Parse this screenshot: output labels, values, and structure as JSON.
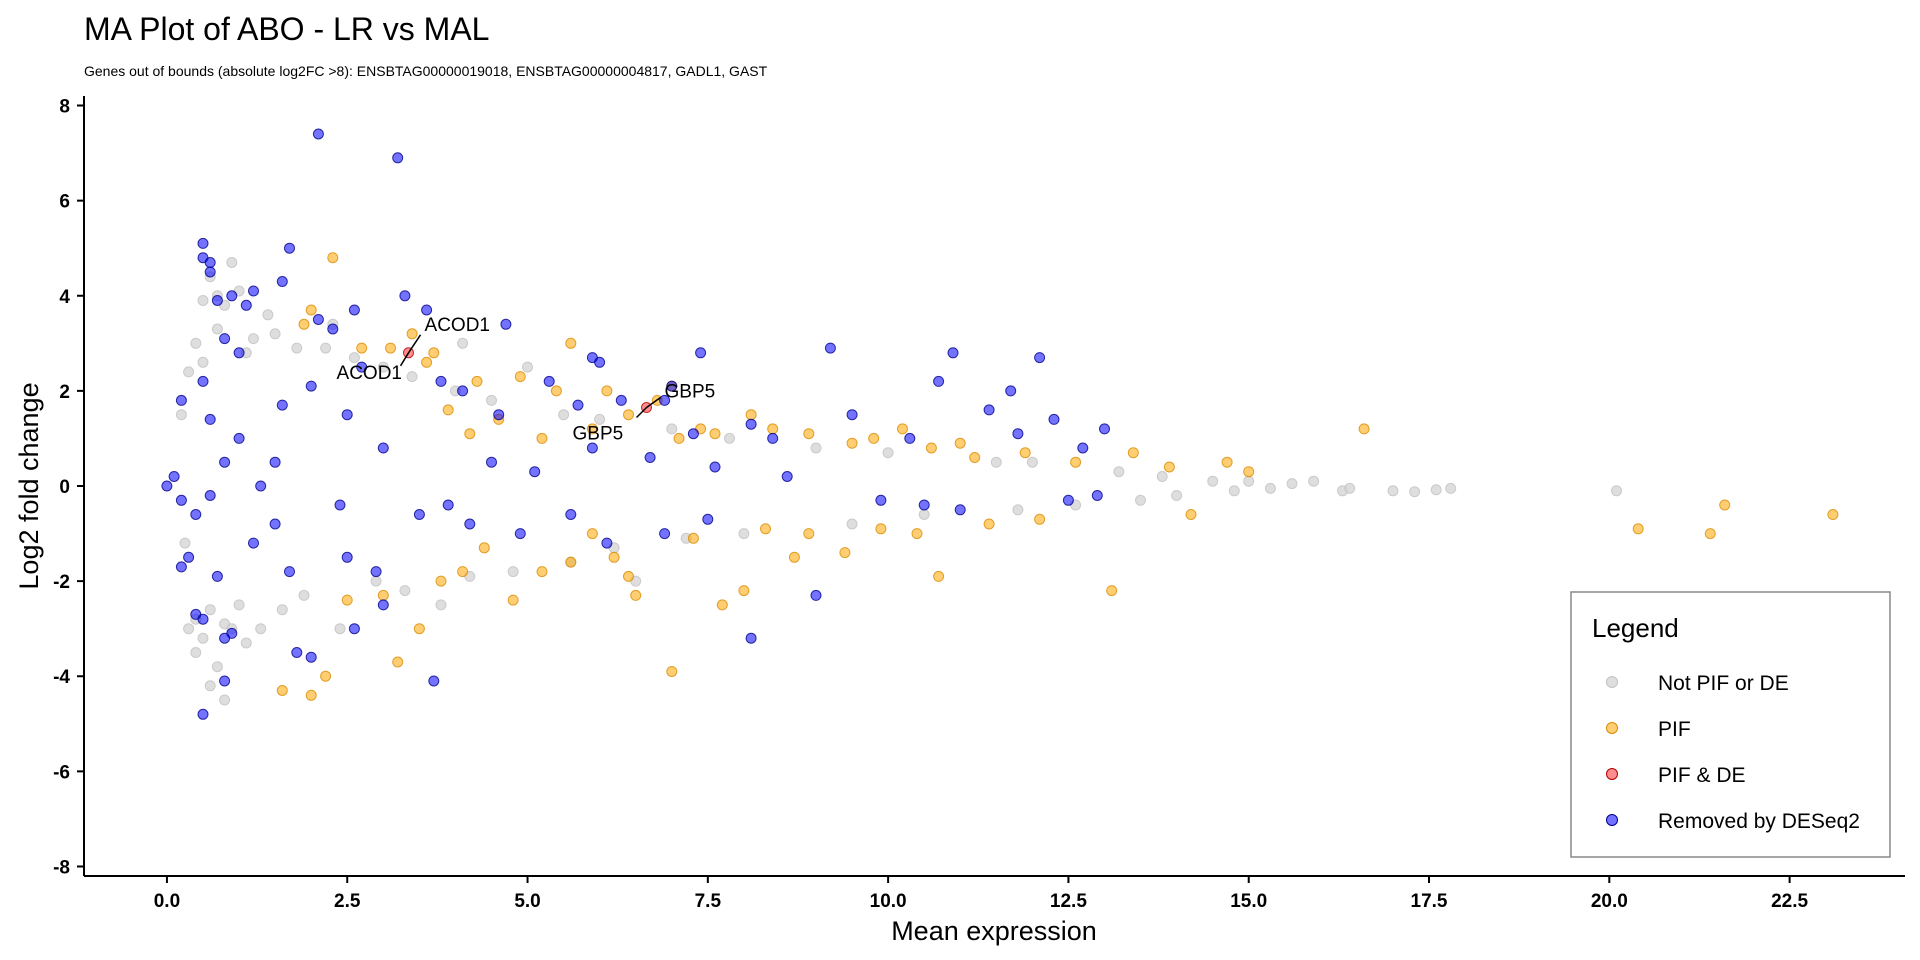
{
  "chart_data": {
    "type": "scatter",
    "title": "MA Plot of ABO - LR vs MAL",
    "subtitle": "Genes out of bounds (absolute log2FC >8):  ENSBTAG00000019018, ENSBTAG00000004817, GADL1, GAST",
    "xlabel": "Mean expression",
    "ylabel": "Log2 fold change",
    "xlim": [
      -1.15,
      24.1
    ],
    "ylim": [
      -8.2,
      8.2
    ],
    "x_ticks": [
      0,
      2.5,
      5,
      7.5,
      10,
      12.5,
      15,
      17.5,
      20,
      22.5
    ],
    "x_tick_labels": [
      "0.0",
      "2.5",
      "5.0",
      "7.5",
      "10.0",
      "12.5",
      "15.0",
      "17.5",
      "20.0",
      "22.5"
    ],
    "y_ticks": [
      -8,
      -6,
      -4,
      -2,
      0,
      2,
      4,
      6,
      8
    ],
    "y_tick_labels": [
      "-8",
      "-6",
      "-4",
      "-2",
      "0",
      "2",
      "4",
      "6",
      "8"
    ],
    "grid": false,
    "legend_position": "bottom-right",
    "legend": {
      "title": "Legend",
      "entries": [
        "Not PIF or DE",
        "PIF",
        "PIF & DE",
        "Removed by DESeq2"
      ]
    },
    "series": [
      {
        "name": "Not PIF or DE",
        "color": "#d3d3d3",
        "points": [
          [
            0.5,
            3.9
          ],
          [
            0.6,
            4.4
          ],
          [
            0.7,
            4.0
          ],
          [
            0.8,
            3.8
          ],
          [
            0.9,
            4.7
          ],
          [
            1.0,
            4.1
          ],
          [
            0.4,
            3.0
          ],
          [
            0.7,
            3.3
          ],
          [
            1.2,
            3.1
          ],
          [
            1.5,
            3.2
          ],
          [
            0.3,
            2.4
          ],
          [
            0.5,
            2.6
          ],
          [
            1.1,
            2.8
          ],
          [
            1.8,
            2.9
          ],
          [
            2.2,
            2.9
          ],
          [
            2.6,
            2.7
          ],
          [
            0.6,
            -2.6
          ],
          [
            0.8,
            -2.9
          ],
          [
            0.5,
            -3.2
          ],
          [
            0.9,
            -3.0
          ],
          [
            0.4,
            -3.5
          ],
          [
            0.7,
            -3.8
          ],
          [
            1.3,
            -3.0
          ],
          [
            1.6,
            -2.6
          ],
          [
            1.9,
            -2.3
          ],
          [
            0.6,
            -4.2
          ],
          [
            0.8,
            -4.5
          ],
          [
            0.3,
            -3.0
          ],
          [
            1.1,
            -3.3
          ],
          [
            0.4,
            -2.8
          ],
          [
            3.0,
            2.5
          ],
          [
            3.4,
            2.3
          ],
          [
            2.9,
            -2.0
          ],
          [
            3.3,
            -2.2
          ],
          [
            4.0,
            2.0
          ],
          [
            4.5,
            1.8
          ],
          [
            4.2,
            -1.9
          ],
          [
            4.8,
            -1.8
          ],
          [
            5.5,
            1.5
          ],
          [
            6.0,
            1.4
          ],
          [
            5.6,
            -1.6
          ],
          [
            6.2,
            -1.3
          ],
          [
            7.0,
            1.2
          ],
          [
            7.8,
            1.0
          ],
          [
            7.2,
            -1.1
          ],
          [
            8.0,
            -1.0
          ],
          [
            9.0,
            0.8
          ],
          [
            10.0,
            0.7
          ],
          [
            9.5,
            -0.8
          ],
          [
            10.5,
            -0.6
          ],
          [
            11.5,
            0.5
          ],
          [
            12.0,
            0.5
          ],
          [
            11.8,
            -0.5
          ],
          [
            12.6,
            -0.4
          ],
          [
            13.2,
            0.3
          ],
          [
            13.8,
            0.2
          ],
          [
            13.5,
            -0.3
          ],
          [
            14.0,
            -0.2
          ],
          [
            14.5,
            0.1
          ],
          [
            14.8,
            -0.1
          ],
          [
            15.0,
            0.1
          ],
          [
            15.3,
            -0.05
          ],
          [
            15.6,
            0.05
          ],
          [
            15.9,
            0.1
          ],
          [
            16.3,
            -0.1
          ],
          [
            16.4,
            -0.05
          ],
          [
            17.0,
            -0.1
          ],
          [
            17.3,
            -0.12
          ],
          [
            17.6,
            -0.08
          ],
          [
            17.8,
            -0.05
          ],
          [
            20.1,
            -0.1
          ],
          [
            4.1,
            3.0
          ],
          [
            5.0,
            2.5
          ],
          [
            2.3,
            3.4
          ],
          [
            1.4,
            3.6
          ],
          [
            2.4,
            -3.0
          ],
          [
            1.0,
            -2.5
          ],
          [
            3.8,
            -2.5
          ],
          [
            6.5,
            -2.0
          ],
          [
            0.2,
            1.5
          ],
          [
            0.25,
            -1.2
          ]
        ]
      },
      {
        "name": "PIF",
        "color": "#ffa500",
        "points": [
          [
            2.3,
            4.8
          ],
          [
            2.0,
            3.7
          ],
          [
            1.9,
            3.4
          ],
          [
            3.4,
            3.2
          ],
          [
            3.7,
            2.8
          ],
          [
            5.6,
            3.0
          ],
          [
            3.1,
            2.9
          ],
          [
            2.7,
            2.9
          ],
          [
            3.6,
            2.6
          ],
          [
            4.3,
            2.2
          ],
          [
            4.9,
            2.3
          ],
          [
            5.4,
            2.0
          ],
          [
            6.1,
            2.0
          ],
          [
            6.8,
            1.8
          ],
          [
            7.0,
            2.1
          ],
          [
            7.4,
            1.2
          ],
          [
            7.1,
            1.0
          ],
          [
            7.6,
            1.1
          ],
          [
            8.4,
            1.2
          ],
          [
            8.9,
            1.1
          ],
          [
            9.5,
            0.9
          ],
          [
            10.2,
            1.2
          ],
          [
            10.6,
            0.8
          ],
          [
            11.2,
            0.6
          ],
          [
            11.9,
            0.7
          ],
          [
            12.6,
            0.5
          ],
          [
            13.4,
            0.7
          ],
          [
            14.7,
            0.5
          ],
          [
            16.6,
            1.2
          ],
          [
            6.4,
            1.5
          ],
          [
            5.2,
            1.0
          ],
          [
            4.6,
            1.4
          ],
          [
            3.9,
            1.6
          ],
          [
            4.2,
            1.1
          ],
          [
            5.9,
            1.2
          ],
          [
            8.1,
            1.5
          ],
          [
            9.8,
            1.0
          ],
          [
            11.0,
            0.9
          ],
          [
            1.6,
            -4.3
          ],
          [
            2.0,
            -4.4
          ],
          [
            2.2,
            -4.0
          ],
          [
            3.2,
            -3.7
          ],
          [
            3.5,
            -3.0
          ],
          [
            2.5,
            -2.4
          ],
          [
            3.0,
            -2.3
          ],
          [
            3.8,
            -2.0
          ],
          [
            4.1,
            -1.8
          ],
          [
            4.8,
            -2.4
          ],
          [
            5.2,
            -1.8
          ],
          [
            5.6,
            -1.6
          ],
          [
            6.2,
            -1.5
          ],
          [
            6.4,
            -1.9
          ],
          [
            6.5,
            -2.3
          ],
          [
            7.0,
            -3.9
          ],
          [
            7.7,
            -2.5
          ],
          [
            8.0,
            -2.2
          ],
          [
            8.7,
            -1.5
          ],
          [
            8.9,
            -1.0
          ],
          [
            9.4,
            -1.4
          ],
          [
            9.9,
            -0.9
          ],
          [
            10.4,
            -1.0
          ],
          [
            10.7,
            -1.9
          ],
          [
            11.4,
            -0.8
          ],
          [
            12.1,
            -0.7
          ],
          [
            13.1,
            -2.2
          ],
          [
            14.2,
            -0.6
          ],
          [
            4.4,
            -1.3
          ],
          [
            5.9,
            -1.0
          ],
          [
            7.3,
            -1.1
          ],
          [
            8.3,
            -0.9
          ],
          [
            20.4,
            -0.9
          ],
          [
            21.4,
            -1.0
          ],
          [
            21.6,
            -0.4
          ],
          [
            23.1,
            -0.6
          ],
          [
            13.9,
            0.4
          ],
          [
            15.0,
            0.3
          ]
        ]
      },
      {
        "name": "PIF & DE",
        "color": "#ff3030",
        "points": [
          [
            3.35,
            2.8
          ],
          [
            6.65,
            1.65
          ]
        ]
      },
      {
        "name": "Removed by DESeq2",
        "color": "#0000ff",
        "points": [
          [
            2.1,
            7.4
          ],
          [
            3.2,
            6.9
          ],
          [
            0.5,
            5.1
          ],
          [
            0.5,
            4.8
          ],
          [
            0.6,
            4.7
          ],
          [
            0.6,
            4.5
          ],
          [
            1.7,
            5.0
          ],
          [
            0.9,
            4.0
          ],
          [
            1.2,
            4.1
          ],
          [
            1.1,
            3.8
          ],
          [
            0.7,
            3.9
          ],
          [
            1.6,
            4.3
          ],
          [
            2.1,
            3.5
          ],
          [
            2.3,
            3.3
          ],
          [
            2.6,
            3.7
          ],
          [
            3.3,
            4.0
          ],
          [
            3.6,
            3.7
          ],
          [
            4.7,
            3.4
          ],
          [
            0.8,
            3.1
          ],
          [
            1.0,
            2.8
          ],
          [
            2.7,
            2.5
          ],
          [
            3.8,
            2.2
          ],
          [
            4.1,
            2.0
          ],
          [
            4.6,
            1.5
          ],
          [
            5.3,
            2.2
          ],
          [
            5.9,
            2.7
          ],
          [
            6.0,
            2.6
          ],
          [
            6.3,
            1.8
          ],
          [
            7.0,
            2.1
          ],
          [
            7.4,
            2.8
          ],
          [
            9.2,
            2.9
          ],
          [
            10.9,
            2.8
          ],
          [
            12.1,
            2.7
          ],
          [
            11.7,
            2.0
          ],
          [
            10.7,
            2.2
          ],
          [
            11.4,
            1.6
          ],
          [
            6.9,
            1.8
          ],
          [
            7.3,
            1.1
          ],
          [
            8.1,
            1.3
          ],
          [
            8.4,
            1.0
          ],
          [
            9.5,
            1.5
          ],
          [
            10.3,
            1.0
          ],
          [
            11.8,
            1.1
          ],
          [
            12.3,
            1.4
          ],
          [
            13.0,
            1.2
          ],
          [
            12.7,
            0.8
          ],
          [
            5.7,
            1.7
          ],
          [
            5.9,
            0.8
          ],
          [
            6.7,
            0.6
          ],
          [
            0.5,
            2.2
          ],
          [
            0.2,
            1.8
          ],
          [
            0.6,
            1.4
          ],
          [
            1.0,
            1.0
          ],
          [
            1.5,
            0.5
          ],
          [
            1.6,
            1.7
          ],
          [
            2.0,
            2.1
          ],
          [
            2.5,
            1.5
          ],
          [
            3.0,
            0.8
          ],
          [
            0.0,
            0.0
          ],
          [
            0.1,
            0.2
          ],
          [
            0.2,
            -0.3
          ],
          [
            0.4,
            -0.6
          ],
          [
            0.3,
            -1.5
          ],
          [
            0.2,
            -1.7
          ],
          [
            0.4,
            -2.7
          ],
          [
            0.5,
            -2.8
          ],
          [
            0.9,
            -3.1
          ],
          [
            0.8,
            -3.2
          ],
          [
            0.8,
            -4.1
          ],
          [
            0.5,
            -4.8
          ],
          [
            1.8,
            -3.5
          ],
          [
            2.0,
            -3.6
          ],
          [
            2.6,
            -3.0
          ],
          [
            3.0,
            -2.5
          ],
          [
            3.7,
            -4.1
          ],
          [
            2.5,
            -1.5
          ],
          [
            3.5,
            -0.6
          ],
          [
            4.2,
            -0.8
          ],
          [
            4.9,
            -1.0
          ],
          [
            5.6,
            -0.6
          ],
          [
            6.1,
            -1.2
          ],
          [
            6.9,
            -1.0
          ],
          [
            7.5,
            -0.7
          ],
          [
            8.1,
            -3.2
          ],
          [
            9.0,
            -2.3
          ],
          [
            10.5,
            -0.4
          ],
          [
            11.0,
            -0.5
          ],
          [
            12.5,
            -0.3
          ],
          [
            12.9,
            -0.2
          ],
          [
            1.2,
            -1.2
          ],
          [
            1.5,
            -0.8
          ],
          [
            2.4,
            -0.4
          ],
          [
            1.3,
            0.0
          ],
          [
            0.8,
            0.5
          ],
          [
            1.7,
            -1.8
          ],
          [
            0.7,
            -1.9
          ],
          [
            0.6,
            -0.2
          ],
          [
            2.9,
            -1.8
          ],
          [
            3.9,
            -0.4
          ],
          [
            5.1,
            0.3
          ],
          [
            7.6,
            0.4
          ],
          [
            8.6,
            0.2
          ],
          [
            9.9,
            -0.3
          ],
          [
            4.5,
            0.5
          ]
        ]
      }
    ],
    "annotations": [
      {
        "text": "ACOD1",
        "x": 3.35,
        "y": 2.8
      },
      {
        "text": "ACOD1",
        "x": 3.35,
        "y": 2.8
      },
      {
        "text": "GBP5",
        "x": 6.65,
        "y": 1.65
      },
      {
        "text": "GBP5",
        "x": 6.65,
        "y": 1.65
      }
    ]
  }
}
